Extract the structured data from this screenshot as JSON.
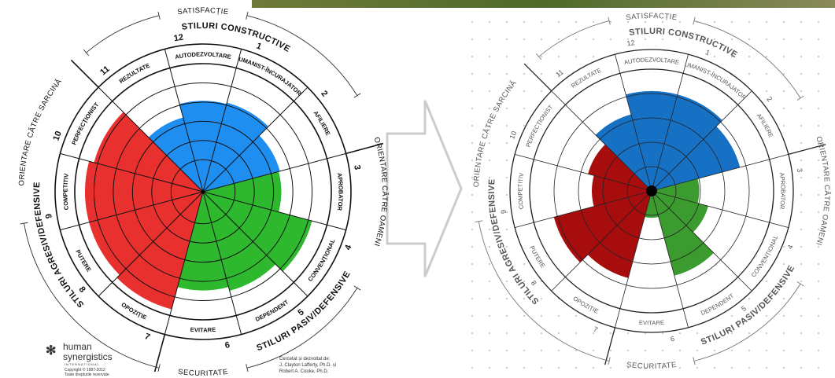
{
  "chart_data": [
    {
      "type": "circumplex",
      "arcs": [
        "SATISFACȚIE",
        "STILURI CONSTRUCTIVE",
        "ORIENTARE CĂTRE OAMENI",
        "STILURI PASIV/DEFENSIVE",
        "SECURITATE",
        "STILURI AGRESIV/DEFENSIVE",
        "ORIENTARE CĂTRE SARCINĂ"
      ],
      "categories": [
        "AUTODEZVOLTARE",
        "UMANIST-ÎNCURAJATOR",
        "AFILIERE",
        "APROBATOR",
        "CONVENȚIONAL",
        "DEPENDENT",
        "EVITARE",
        "OPOZIȚIE",
        "PUTERE",
        "COMPETITIV",
        "PERFECȚIONIST",
        "REZULTATE"
      ],
      "numbers": [
        12,
        1,
        2,
        3,
        4,
        5,
        6,
        7,
        8,
        9,
        10,
        11
      ],
      "values": [
        71,
        72,
        62,
        61,
        88,
        80,
        77,
        95,
        92,
        92,
        88,
        60
      ],
      "colors": [
        "#1e8ff0",
        "#1e8ff0",
        "#1e8ff0",
        "#2db82d",
        "#2db82d",
        "#2db82d",
        "#2db82d",
        "#e8302f",
        "#e8302f",
        "#e8302f",
        "#e8302f",
        "#1e8ff0"
      ],
      "rlim": [
        0,
        100
      ],
      "rticks": [
        25,
        40,
        55,
        70,
        85,
        100
      ]
    },
    {
      "type": "circumplex",
      "arcs": [
        "SATISFACȚIE",
        "STILURI CONSTRUCTIVE",
        "ORIENTARE CĂTRE OAMENI",
        "STILURI PASIV/DEFENSIVE",
        "SECURITATE",
        "STILURI AGRESIV/DEFENSIVE",
        "ORIENTARE CĂTRE SARCINĂ"
      ],
      "categories": [
        "AUTODEZVOLTARE",
        "UMANIST-ÎNCURAJATOR",
        "AFILIERE",
        "APROBATOR",
        "CONVENȚIONAL",
        "DEPENDENT",
        "EVITARE",
        "OPOZIȚIE",
        "PUTERE",
        "COMPETITIV",
        "PERFECȚIONIST",
        "REZULTATE"
      ],
      "numbers": [
        12,
        1,
        2,
        3,
        4,
        5,
        6,
        7,
        8,
        9,
        10,
        11
      ],
      "values": [
        82,
        82,
        75,
        39,
        48,
        72,
        22,
        74,
        83,
        49,
        54,
        65
      ],
      "colors": [
        "#1670c4",
        "#1670c4",
        "#1670c4",
        "#3b9b2e",
        "#3b9b2e",
        "#3b9b2e",
        "#3b9b2e",
        "#a80d0d",
        "#a80d0d",
        "#a80d0d",
        "#a80d0d",
        "#1670c4"
      ],
      "rlim": [
        0,
        100
      ],
      "rticks": [
        20,
        40,
        60,
        80,
        100
      ]
    }
  ],
  "footer": {
    "logo": [
      "human",
      "synergistics",
      "INTERNATIONAL"
    ],
    "copyright": [
      "Copyright © 1987-2012",
      "Toate drepturile rezervate"
    ],
    "credits": [
      "Cercetat și dezvoltat de:",
      "J. Clayton Lafferty, Ph.D. și",
      "Robert A. Cooke, Ph.D."
    ]
  }
}
